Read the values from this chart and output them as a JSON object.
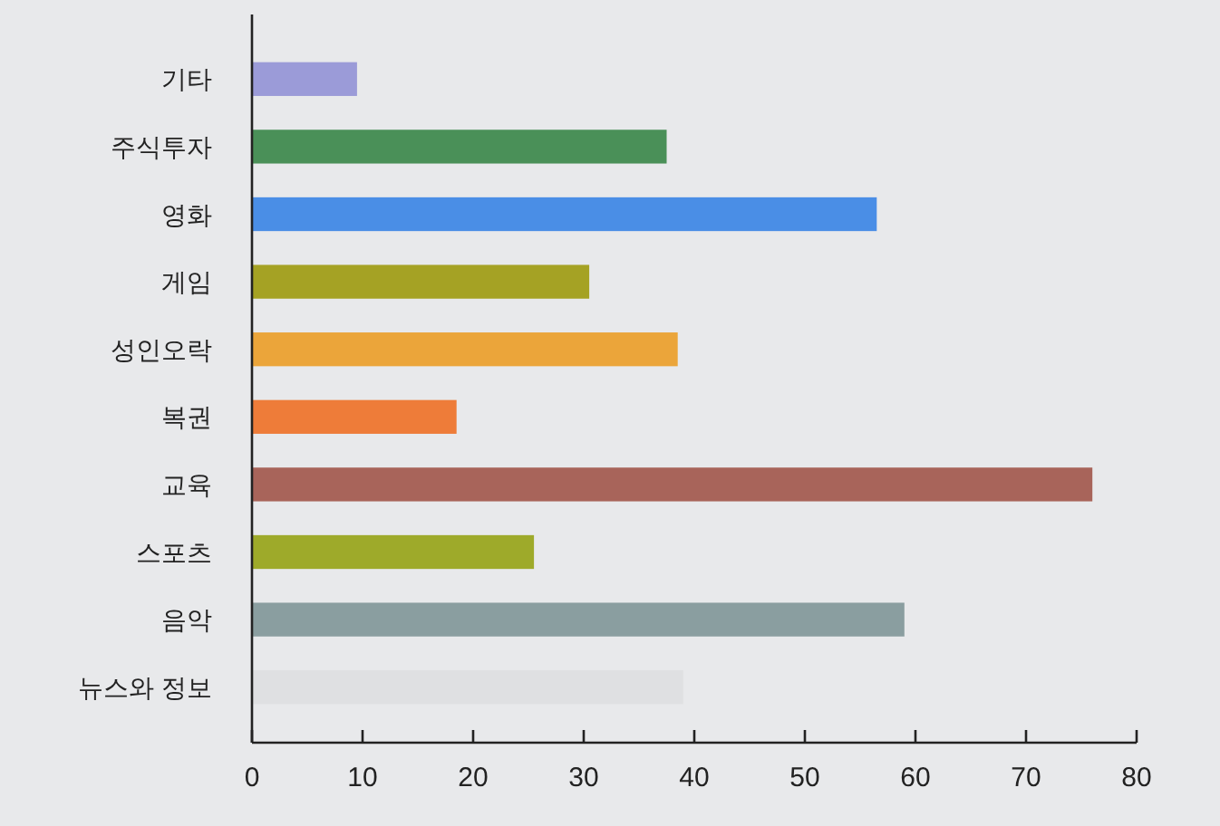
{
  "chart_data": {
    "type": "bar",
    "orientation": "horizontal",
    "categories": [
      "기타",
      "주식투자",
      "영화",
      "게임",
      "성인오락",
      "복권",
      "교육",
      "스포츠",
      "음악",
      "뉴스와 정보"
    ],
    "values": [
      9.5,
      37.5,
      56.5,
      30.5,
      38.5,
      18.5,
      76,
      25.5,
      59,
      39
    ],
    "colors": [
      "#9b9bd8",
      "#4a9058",
      "#4a8ee6",
      "#a5a224",
      "#eba53a",
      "#ee7c39",
      "#a8645a",
      "#9eaa2a",
      "#8a9ea0",
      "#dfe0e2"
    ],
    "xlim": [
      0,
      80
    ],
    "xticks": [
      0,
      10,
      20,
      30,
      40,
      50,
      60,
      70,
      80
    ],
    "grid": false
  }
}
